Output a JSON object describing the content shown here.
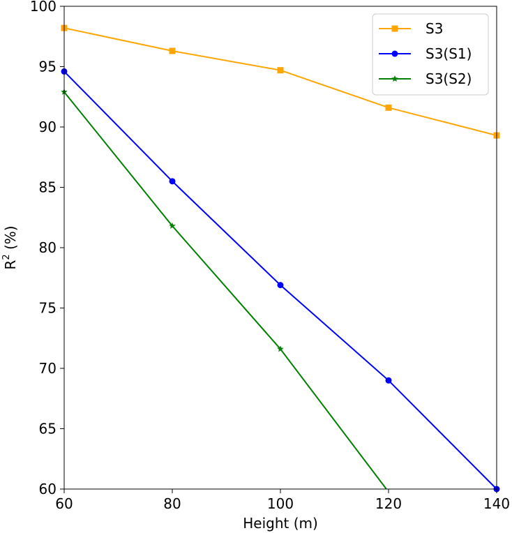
{
  "chart_data": {
    "type": "line",
    "xlabel": "Height (m)",
    "ylabel_main": "R",
    "ylabel_sup": "2",
    "ylabel_rest": " (%)",
    "xlim": [
      60,
      140
    ],
    "ylim": [
      60,
      100
    ],
    "xticks": [
      60,
      80,
      100,
      120,
      140
    ],
    "yticks": [
      60,
      65,
      70,
      75,
      80,
      85,
      90,
      95,
      100
    ],
    "grid": false,
    "legend_position": "top-right",
    "series": [
      {
        "name": "S3",
        "color": "#ffa500",
        "marker": "square",
        "x": [
          60,
          80,
          100,
          120,
          140
        ],
        "y": [
          98.2,
          96.3,
          94.7,
          91.6,
          89.3
        ]
      },
      {
        "name": "S3(S1)",
        "color": "#0000ff",
        "marker": "circle",
        "x": [
          60,
          80,
          100,
          120,
          140
        ],
        "y": [
          94.6,
          85.5,
          76.9,
          69.0,
          60.0
        ]
      },
      {
        "name": "S3(S2)",
        "color": "#008000",
        "marker": "star",
        "x": [
          60,
          80,
          100,
          119.6
        ],
        "y": [
          92.9,
          81.8,
          71.6,
          60.0
        ]
      }
    ]
  }
}
